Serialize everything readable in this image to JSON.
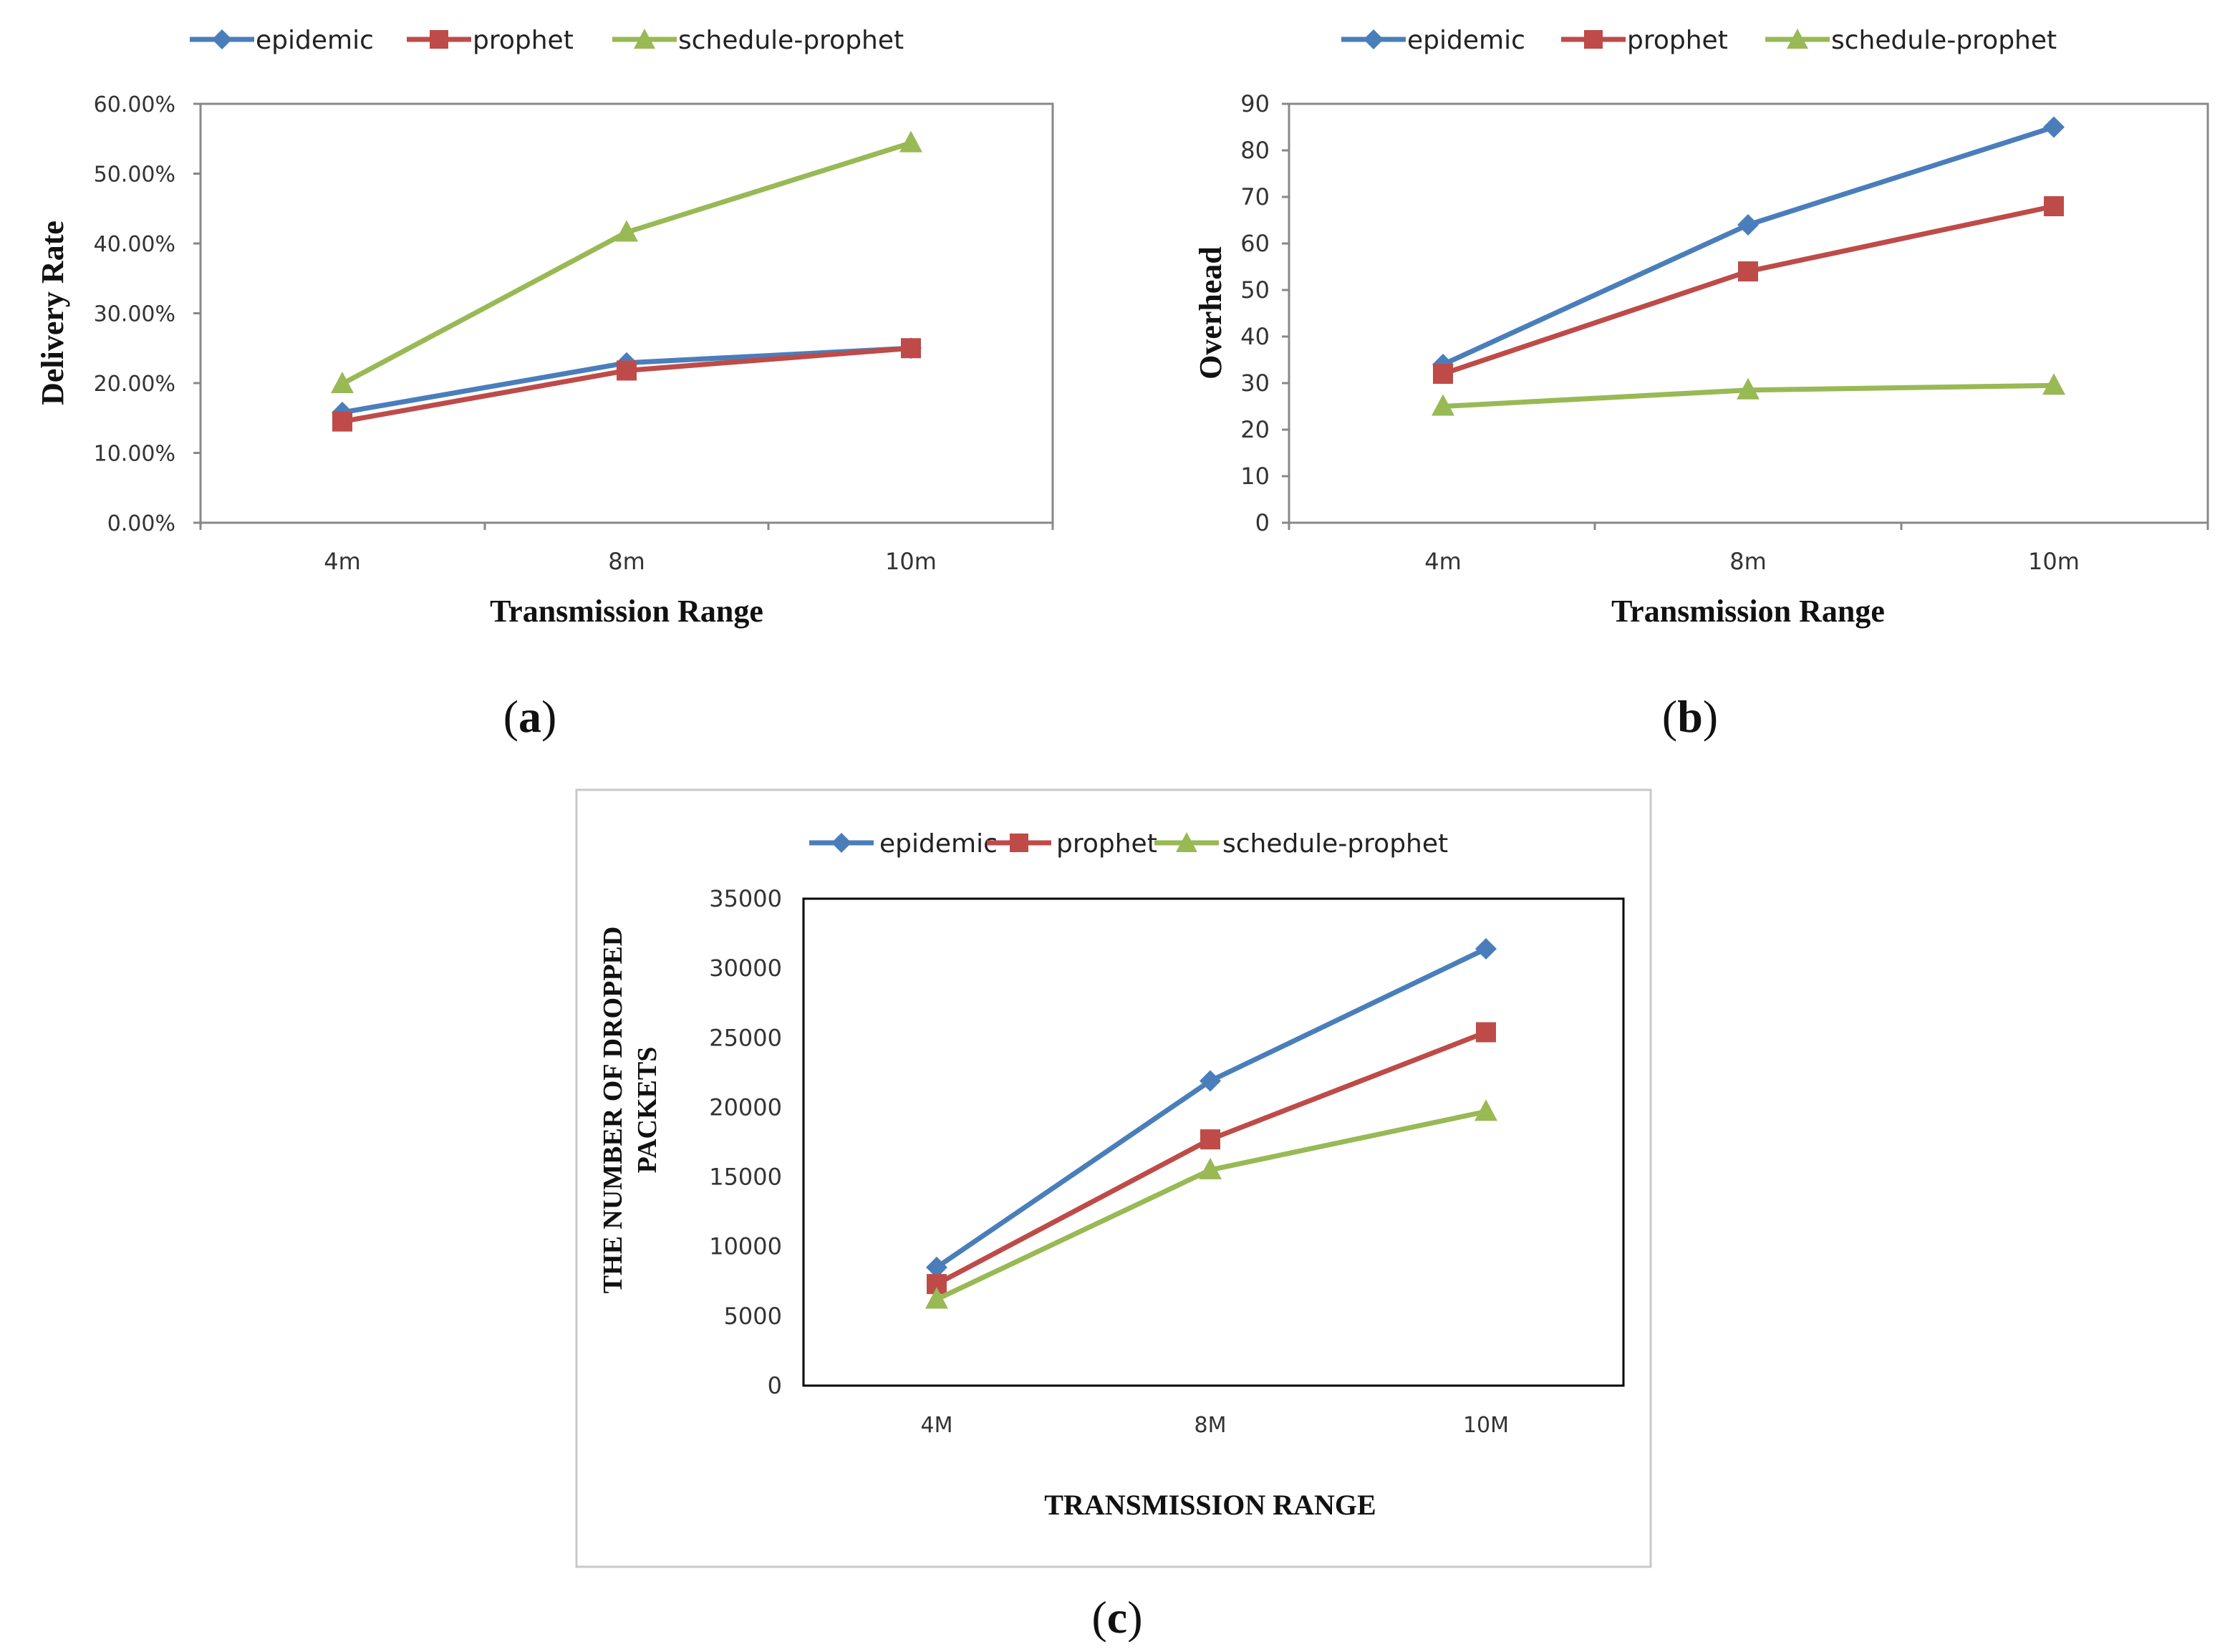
{
  "colors": {
    "epidemic": "#4A7EBB",
    "prophet": "#BE4B48",
    "schedule_prophet": "#98B954",
    "axis": "#888888",
    "frame": "#000000",
    "box": "#c8c8c8"
  },
  "panels": {
    "a": "a",
    "b": "b",
    "c": "c"
  },
  "chart_data": [
    {
      "id": "a",
      "type": "line",
      "categories": [
        "4m",
        "8m",
        "10m"
      ],
      "series": [
        {
          "name": "epidemic",
          "marker": "diamond",
          "values": [
            15.8,
            22.9,
            25.0
          ]
        },
        {
          "name": "prophet",
          "marker": "square",
          "values": [
            14.5,
            21.8,
            25.0
          ]
        },
        {
          "name": "schedule-prophet",
          "marker": "triangle",
          "values": [
            19.9,
            41.6,
            54.4
          ]
        }
      ],
      "xlabel": "Transmission Range",
      "ylabel": "Delivery Rate",
      "ylim": [
        0,
        60
      ],
      "yticks": [
        0,
        10,
        20,
        30,
        40,
        50,
        60
      ],
      "ytick_labels": [
        "0.00%",
        "10.00%",
        "20.00%",
        "30.00%",
        "40.00%",
        "50.00%",
        "60.00%"
      ],
      "legend": "top"
    },
    {
      "id": "b",
      "type": "line",
      "categories": [
        "4m",
        "8m",
        "10m"
      ],
      "series": [
        {
          "name": "epidemic",
          "marker": "diamond",
          "values": [
            34,
            64,
            85
          ]
        },
        {
          "name": "prophet",
          "marker": "square",
          "values": [
            32,
            54,
            68
          ]
        },
        {
          "name": "schedule-prophet",
          "marker": "triangle",
          "values": [
            25,
            28.5,
            29.5
          ]
        }
      ],
      "xlabel": "Transmission Range",
      "ylabel": "Overhead",
      "ylim": [
        0,
        90
      ],
      "yticks": [
        0,
        10,
        20,
        30,
        40,
        50,
        60,
        70,
        80,
        90
      ],
      "ytick_labels": [
        "0",
        "10",
        "20",
        "30",
        "40",
        "50",
        "60",
        "70",
        "80",
        "90"
      ],
      "legend": "top"
    },
    {
      "id": "c",
      "type": "line",
      "categories": [
        "4M",
        "8M",
        "10M"
      ],
      "series": [
        {
          "name": "epidemic",
          "marker": "diamond",
          "values": [
            8500,
            21900,
            31400
          ]
        },
        {
          "name": "prophet",
          "marker": "square",
          "values": [
            7300,
            17700,
            25400
          ]
        },
        {
          "name": "schedule-prophet",
          "marker": "triangle",
          "values": [
            6200,
            15500,
            19700
          ]
        }
      ],
      "xlabel": "TRANSMISSION RANGE",
      "ylabel_lines": [
        "THE NUMBER OF DROPPED",
        "PACKETS"
      ],
      "ylim": [
        0,
        35000
      ],
      "yticks": [
        0,
        5000,
        10000,
        15000,
        20000,
        25000,
        30000,
        35000
      ],
      "ytick_labels": [
        "0",
        "5000",
        "10000",
        "15000",
        "20000",
        "25000",
        "30000",
        "35000"
      ],
      "legend": "top"
    }
  ]
}
